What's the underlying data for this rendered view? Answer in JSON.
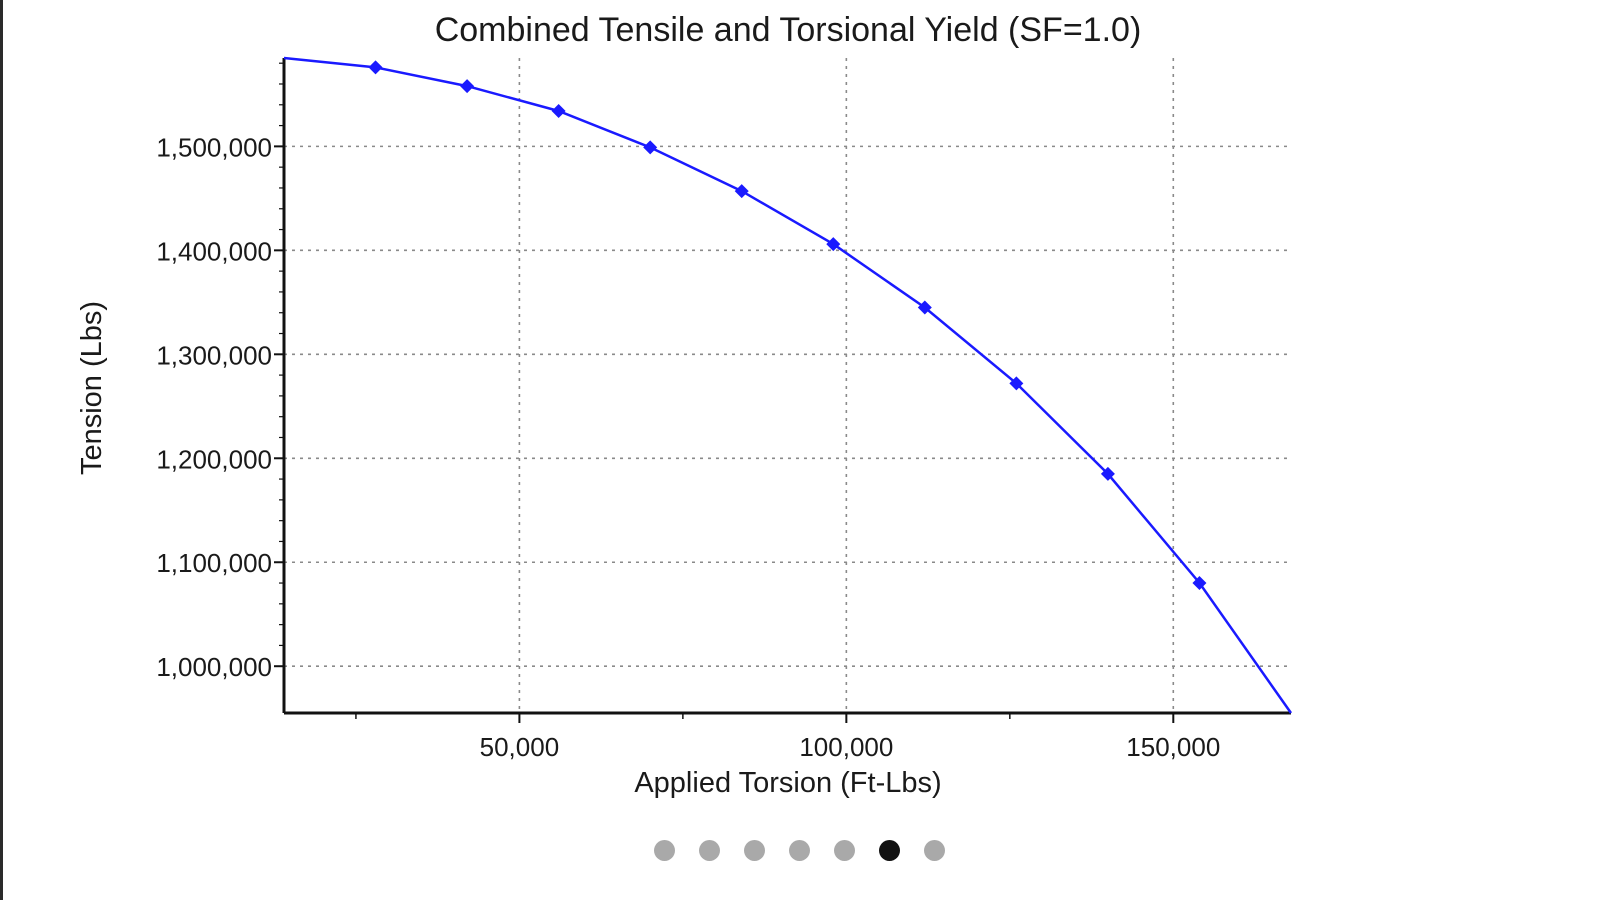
{
  "chart_data": {
    "type": "line",
    "title": "Combined Tensile and Torsional Yield (SF=1.0)",
    "xlabel": "Applied Torsion (Ft-Lbs)",
    "ylabel": "Tension (Lbs)",
    "xlim": [
      14000,
      168000
    ],
    "ylim": [
      955000,
      1585000
    ],
    "x_ticks": [
      50000,
      100000,
      150000
    ],
    "x_tick_labels": [
      "50,000",
      "100,000",
      "150,000"
    ],
    "y_ticks": [
      1000000,
      1100000,
      1200000,
      1300000,
      1400000,
      1500000
    ],
    "y_tick_labels": [
      "1,000,000",
      "1,100,000",
      "1,200,000",
      "1,300,000",
      "1,400,000",
      "1,500,000"
    ],
    "grid": true,
    "color": "#1a1aff",
    "series": [
      {
        "name": "",
        "x": [
          14000,
          28000,
          42000,
          56000,
          70000,
          84000,
          98000,
          112000,
          126000,
          140000,
          154000,
          168000
        ],
        "y": [
          1585000,
          1576000,
          1558000,
          1534000,
          1499000,
          1457000,
          1406000,
          1345000,
          1272000,
          1185000,
          1080000,
          955000
        ],
        "markers": [
          false,
          true,
          true,
          true,
          true,
          true,
          true,
          true,
          true,
          true,
          true,
          false
        ]
      }
    ]
  },
  "pager": {
    "count": 7,
    "active_index": 5,
    "active_color": "#111111",
    "inactive_color": "#a9a9a9"
  }
}
